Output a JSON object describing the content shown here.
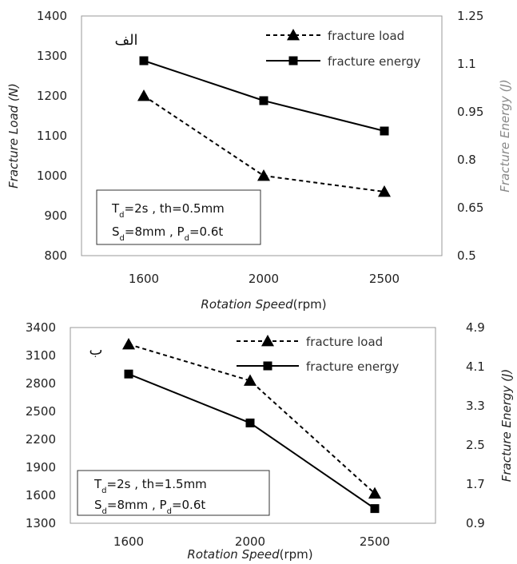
{
  "chart_data": [
    {
      "type": "line",
      "panel_label": "الف",
      "categories": [
        "1600",
        "2000",
        "2500"
      ],
      "xlabel_main": "Rotation Speed",
      "xlabel_unit": "(rpm)",
      "ylabel_left": "Fracture Load (N)",
      "ylabel_right": "Fracture Energy (J)",
      "ylim_left": [
        800,
        1400
      ],
      "yticks_left": [
        "800",
        "900",
        "1000",
        "1100",
        "1200",
        "1300",
        "1400"
      ],
      "ylim_right": [
        0.5,
        1.25
      ],
      "yticks_right": [
        "0.5",
        "0.65",
        "0.8",
        "0.95",
        "1.1",
        "1.25"
      ],
      "series": [
        {
          "name": "fracture load",
          "axis": "left",
          "marker": "triangle",
          "dashed": true,
          "values": [
            1200,
            1000,
            960
          ]
        },
        {
          "name": "fracture energy",
          "axis": "right",
          "marker": "square",
          "dashed": false,
          "values": [
            1.11,
            0.985,
            0.89
          ]
        }
      ],
      "info_lines": [
        [
          {
            "t": "T"
          },
          {
            "t": "d",
            "sub": true
          },
          {
            "t": "=2s , th=0.5mm"
          }
        ],
        [
          {
            "t": "S"
          },
          {
            "t": "d",
            "sub": true
          },
          {
            "t": "=8mm , P"
          },
          {
            "t": "d",
            "sub": true
          },
          {
            "t": "=0.6t"
          }
        ]
      ]
    },
    {
      "type": "line",
      "panel_label": "ب",
      "categories": [
        "1600",
        "2000",
        "2500"
      ],
      "xlabel_main": "Rotation Speed",
      "xlabel_unit": "(rpm)",
      "ylabel_left": "",
      "ylabel_right": "Fracture Energy (J)",
      "ylim_left": [
        1300,
        3400
      ],
      "yticks_left": [
        "1300",
        "1600",
        "1900",
        "2200",
        "2500",
        "2800",
        "3100",
        "3400"
      ],
      "ylim_right": [
        0.9,
        4.9
      ],
      "yticks_right": [
        "0.9",
        "1.7",
        "2.5",
        "3.3",
        "4.1",
        "4.9"
      ],
      "series": [
        {
          "name": "fracture load",
          "axis": "left",
          "marker": "triangle",
          "dashed": true,
          "values": [
            3220,
            2830,
            1620
          ]
        },
        {
          "name": "fracture energy",
          "axis": "right",
          "marker": "square",
          "dashed": false,
          "values": [
            3.95,
            2.95,
            1.2
          ]
        }
      ],
      "info_lines": [
        [
          {
            "t": "T"
          },
          {
            "t": "d",
            "sub": true
          },
          {
            "t": "=2s , th=1.5mm"
          }
        ],
        [
          {
            "t": "S"
          },
          {
            "t": "d",
            "sub": true
          },
          {
            "t": "=8mm , P"
          },
          {
            "t": "d",
            "sub": true
          },
          {
            "t": "=0.6t"
          }
        ]
      ]
    }
  ]
}
